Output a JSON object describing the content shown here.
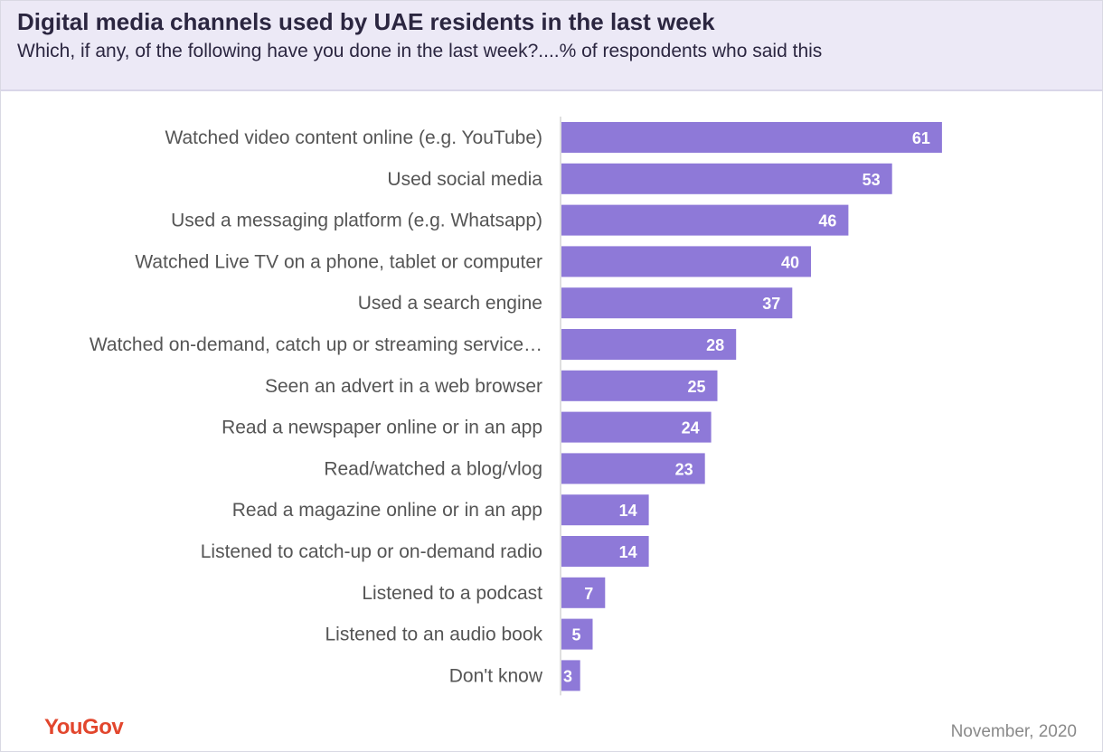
{
  "header": {
    "title": "Digital media channels used by UAE residents in the last week",
    "subtitle": "Which, if any, of the following have you done in the last week?....% of respondents who said this"
  },
  "footer": {
    "logo_text": "YouGov",
    "date": "November, 2020"
  },
  "colors": {
    "bar": "#8e79d8",
    "header_bg": "#ece9f6",
    "logo": "#e2462d"
  },
  "chart_data": {
    "type": "bar",
    "orientation": "horizontal",
    "title": "Digital media channels used by UAE residents in the last week",
    "subtitle": "Which, if any, of the following have you done in the last week?....% of respondents who said this",
    "categories": [
      "Watched video content online (e.g. YouTube)",
      "Used social media",
      "Used a messaging platform (e.g. Whatsapp)",
      "Watched Live TV on a phone, tablet or computer",
      "Used a search engine",
      "Watched on-demand, catch up or streaming service…",
      "Seen an advert in a web browser",
      "Read a newspaper online or in an app",
      "Read/watched a blog/vlog",
      "Read a magazine online or in an app",
      "Listened to catch-up or on-demand radio",
      "Listened to a podcast",
      "Listened to an audio book",
      "Don't know"
    ],
    "values": [
      61,
      53,
      46,
      40,
      37,
      28,
      25,
      24,
      23,
      14,
      14,
      7,
      5,
      3
    ],
    "xlim": [
      0,
      100
    ],
    "grid": false,
    "data_labels": true
  }
}
